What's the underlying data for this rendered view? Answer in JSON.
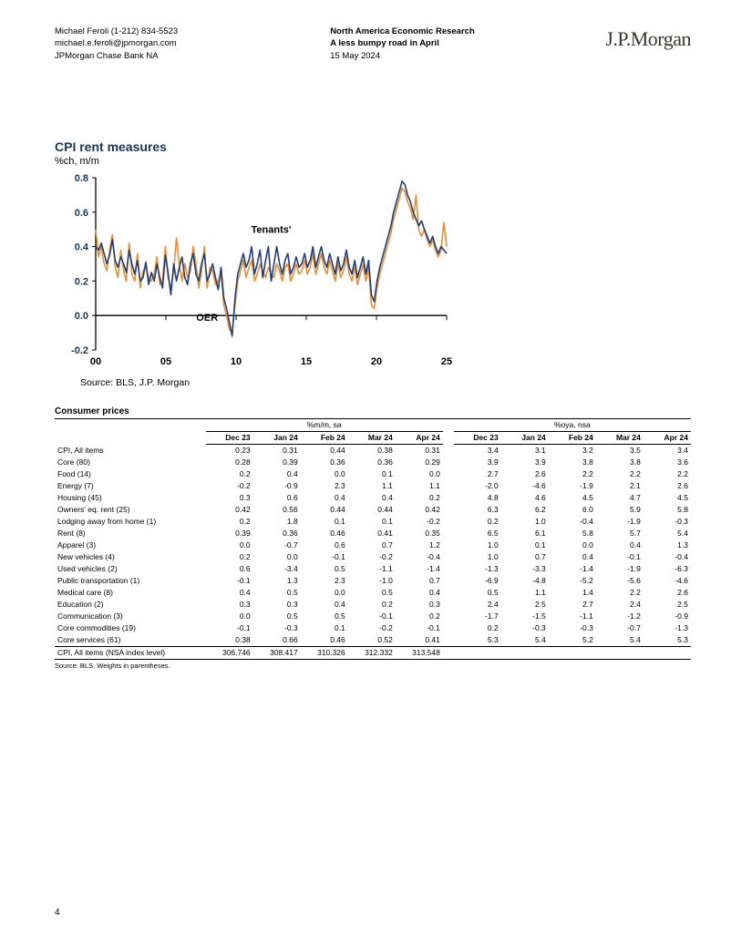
{
  "header": {
    "author_line": "Michael Feroli  (1-212) 834-5523",
    "email": "michael.e.feroli@jpmorgan.com",
    "bank": "JPMorgan Chase Bank NA",
    "dept": "North America Economic Research",
    "title": "A less bumpy road in April",
    "date": "15 May 2024",
    "logo": "J.P.Morgan"
  },
  "chart": {
    "title": "CPI rent measures",
    "subtitle": "%ch, m/m",
    "source": "Source: BLS, J.P. Morgan",
    "ylim": [
      -0.2,
      0.8
    ],
    "ytick_step": 0.2,
    "yticks": [
      "-0.2",
      "0.0",
      "0.2",
      "0.4",
      "0.6",
      "0.8"
    ],
    "xticks": [
      "00",
      "05",
      "10",
      "15",
      "20",
      "25"
    ],
    "series_labels": {
      "tenants": "Tenants'",
      "oer": "OER"
    },
    "colors": {
      "tenants": "#1f3f7a",
      "oer": "#f08c2e",
      "axis": "#000000",
      "tick_text": "#000000",
      "ytick_text": "#14365d"
    },
    "line_width": 1.6,
    "label_fontsize": 11,
    "tick_fontsize": 11,
    "tenants": [
      0.4,
      0.38,
      0.42,
      0.36,
      0.3,
      0.35,
      0.44,
      0.32,
      0.28,
      0.34,
      0.3,
      0.25,
      0.38,
      0.3,
      0.24,
      0.32,
      0.2,
      0.22,
      0.31,
      0.18,
      0.25,
      0.2,
      0.3,
      0.22,
      0.16,
      0.35,
      0.25,
      0.12,
      0.3,
      0.2,
      0.28,
      0.34,
      0.22,
      0.18,
      0.3,
      0.36,
      0.24,
      0.2,
      0.3,
      0.36,
      0.2,
      0.24,
      0.3,
      0.22,
      0.15,
      0.28,
      0.1,
      0.04,
      -0.04,
      -0.12,
      0.1,
      0.24,
      0.3,
      0.36,
      0.28,
      0.32,
      0.4,
      0.24,
      0.3,
      0.38,
      0.22,
      0.32,
      0.4,
      0.2,
      0.3,
      0.4,
      0.3,
      0.24,
      0.32,
      0.36,
      0.24,
      0.28,
      0.34,
      0.28,
      0.3,
      0.36,
      0.28,
      0.32,
      0.4,
      0.28,
      0.34,
      0.4,
      0.32,
      0.28,
      0.36,
      0.3,
      0.24,
      0.34,
      0.26,
      0.3,
      0.38,
      0.28,
      0.24,
      0.32,
      0.22,
      0.28,
      0.34,
      0.24,
      0.32,
      0.12,
      0.08,
      0.2,
      0.28,
      0.34,
      0.4,
      0.46,
      0.52,
      0.6,
      0.66,
      0.72,
      0.78,
      0.76,
      0.7,
      0.66,
      0.6,
      0.56,
      0.52,
      0.55,
      0.5,
      0.46,
      0.42,
      0.46,
      0.4,
      0.36,
      0.4,
      0.38,
      0.36
    ],
    "oer": [
      0.5,
      0.34,
      0.4,
      0.3,
      0.26,
      0.38,
      0.47,
      0.28,
      0.22,
      0.38,
      0.26,
      0.2,
      0.42,
      0.24,
      0.2,
      0.36,
      0.16,
      0.26,
      0.28,
      0.22,
      0.2,
      0.24,
      0.34,
      0.18,
      0.2,
      0.4,
      0.22,
      0.16,
      0.26,
      0.45,
      0.3,
      0.2,
      0.3,
      0.22,
      0.26,
      0.4,
      0.3,
      0.16,
      0.26,
      0.4,
      0.16,
      0.28,
      0.26,
      0.18,
      0.2,
      0.24,
      0.06,
      0.0,
      -0.08,
      -0.1,
      0.06,
      0.2,
      0.26,
      0.32,
      0.22,
      0.28,
      0.32,
      0.2,
      0.24,
      0.3,
      0.26,
      0.22,
      0.28,
      0.24,
      0.22,
      0.3,
      0.26,
      0.2,
      0.28,
      0.3,
      0.2,
      0.24,
      0.3,
      0.24,
      0.26,
      0.32,
      0.24,
      0.28,
      0.36,
      0.24,
      0.3,
      0.36,
      0.28,
      0.24,
      0.32,
      0.26,
      0.2,
      0.3,
      0.22,
      0.26,
      0.34,
      0.24,
      0.2,
      0.28,
      0.18,
      0.24,
      0.3,
      0.2,
      0.28,
      0.06,
      0.04,
      0.16,
      0.24,
      0.3,
      0.36,
      0.42,
      0.48,
      0.56,
      0.62,
      0.68,
      0.74,
      0.72,
      0.66,
      0.62,
      0.56,
      0.7,
      0.5,
      0.46,
      0.5,
      0.44,
      0.4,
      0.44,
      0.38,
      0.34,
      0.38,
      0.54,
      0.4
    ]
  },
  "table": {
    "title": "Consumer prices",
    "group1": "%m/m, sa",
    "group2": "%oya, nsa",
    "cols": [
      "Dec 23",
      "Jan 24",
      "Feb 24",
      "Mar 24",
      "Apr 24",
      "Dec 23",
      "Jan 24",
      "Feb 24",
      "Mar 24",
      "Apr 24"
    ],
    "rows": [
      {
        "label": "CPI, All items",
        "v": [
          "0.23",
          "0.31",
          "0.44",
          "0.38",
          "0.31",
          "3.4",
          "3.1",
          "3.2",
          "3.5",
          "3.4"
        ]
      },
      {
        "label": "Core (80)",
        "v": [
          "0.28",
          "0.39",
          "0.36",
          "0.36",
          "0.29",
          "3.9",
          "3.9",
          "3.8",
          "3.8",
          "3.6"
        ]
      },
      {
        "label": "Food (14)",
        "v": [
          "0.2",
          "0.4",
          "0.0",
          "0.1",
          "0.0",
          "2.7",
          "2.6",
          "2.2",
          "2.2",
          "2.2"
        ]
      },
      {
        "label": "Energy (7)",
        "v": [
          "-0.2",
          "-0.9",
          "2.3",
          "1.1",
          "1.1",
          "-2.0",
          "-4.6",
          "-1.9",
          "2.1",
          "2.6"
        ]
      },
      {
        "label": "Housing (45)",
        "v": [
          "0.3",
          "0.6",
          "0.4",
          "0.4",
          "0.2",
          "4.8",
          "4.6",
          "4.5",
          "4.7",
          "4.5"
        ]
      },
      {
        "label": "Owners' eq. rent (25)",
        "v": [
          "0.42",
          "0.56",
          "0.44",
          "0.44",
          "0.42",
          "6.3",
          "6.2",
          "6.0",
          "5.9",
          "5.8"
        ]
      },
      {
        "label": "Lodging away from home (1)",
        "v": [
          "0.2",
          "1.8",
          "0.1",
          "0.1",
          "-0.2",
          "0.2",
          "1.0",
          "-0.4",
          "-1.9",
          "-0.3"
        ]
      },
      {
        "label": "Rent (8)",
        "v": [
          "0.39",
          "0.36",
          "0.46",
          "0.41",
          "0.35",
          "6.5",
          "6.1",
          "5.8",
          "5.7",
          "5.4"
        ]
      },
      {
        "label": "Apparel (3)",
        "v": [
          "0.0",
          "-0.7",
          "0.6",
          "0.7",
          "1.2",
          "1.0",
          "0.1",
          "0.0",
          "0.4",
          "1.3"
        ]
      },
      {
        "label": "New vehicles (4)",
        "v": [
          "0.2",
          "0.0",
          "-0.1",
          "-0.2",
          "-0.4",
          "1.0",
          "0.7",
          "0.4",
          "-0.1",
          "-0.4"
        ]
      },
      {
        "label": "Used vehicles (2)",
        "v": [
          "0.6",
          "-3.4",
          "0.5",
          "-1.1",
          "-1.4",
          "-1.3",
          "-3.3",
          "-1.4",
          "-1.9",
          "-6.3"
        ]
      },
      {
        "label": "Public transportation (1)",
        "v": [
          "-0.1",
          "1.3",
          "2.3",
          "-1.0",
          "0.7",
          "-6.9",
          "-4.8",
          "-5.2",
          "-5.6",
          "-4.6"
        ]
      },
      {
        "label": "Medical care (8)",
        "v": [
          "0.4",
          "0.5",
          "0.0",
          "0.5",
          "0.4",
          "0.5",
          "1.1",
          "1.4",
          "2.2",
          "2.6"
        ]
      },
      {
        "label": "Education (2)",
        "v": [
          "0.3",
          "0.3",
          "0.4",
          "0.2",
          "0.3",
          "2.4",
          "2.5",
          "2.7",
          "2.4",
          "2.5"
        ]
      },
      {
        "label": "Communication (3)",
        "v": [
          "0.0",
          "0.5",
          "0.5",
          "-0.1",
          "0.2",
          "-1.7",
          "-1.5",
          "-1.1",
          "-1.2",
          "-0.9"
        ]
      },
      {
        "label": "Core commodities (19)",
        "v": [
          "-0.1",
          "-0.3",
          "0.1",
          "-0.2",
          "-0.1",
          "0.2",
          "-0.3",
          "-0.3",
          "-0.7",
          "-1.3"
        ]
      },
      {
        "label": "Core services (61)",
        "v": [
          "0.38",
          "0.66",
          "0.46",
          "0.52",
          "0.41",
          "5.3",
          "5.4",
          "5.2",
          "5.4",
          "5.3"
        ]
      }
    ],
    "last_row": {
      "label": "CPI, All items (NSA index level)",
      "v": [
        "306.746",
        "308.417",
        "310.326",
        "312.332",
        "313.548",
        "",
        "",
        "",
        "",
        ""
      ]
    },
    "footer": "Source: BLS. Weights in parentheses."
  },
  "page_num": "4"
}
